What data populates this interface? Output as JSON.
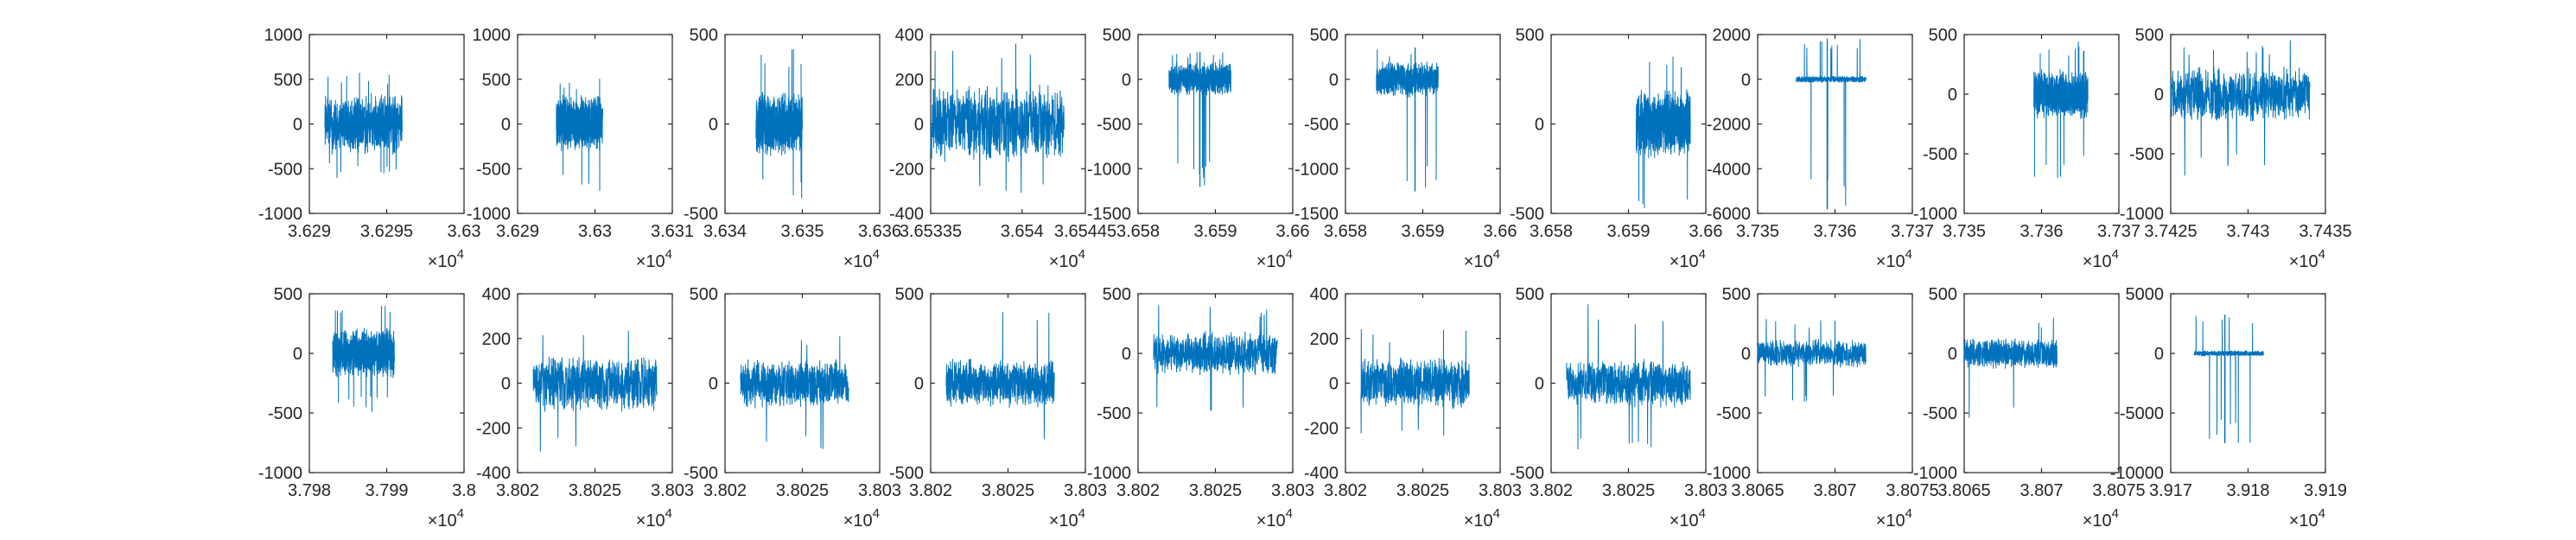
{
  "figure": {
    "line_color": "#0072BD",
    "axis_color": "#262626",
    "background": "#ffffff",
    "grid": false,
    "legend": "none"
  },
  "chart_data": [
    {
      "type": "line",
      "x_multiplier": "×10",
      "x_exponent": "4",
      "xlim": [
        3.629,
        3.63
      ],
      "ylim": [
        -1000,
        1000
      ],
      "x_ticks": [
        "3.629",
        "3.6295",
        "3.63"
      ],
      "y_ticks": [
        "-1000",
        "-500",
        "0",
        "500",
        "1000"
      ],
      "signal": {
        "type": "noise",
        "x_start": 3.6291,
        "x_end": 3.6296,
        "amplitude": 300,
        "peak_max": 600,
        "peak_min": -600,
        "spike_x": null
      }
    },
    {
      "type": "line",
      "x_multiplier": "×10",
      "x_exponent": "4",
      "xlim": [
        3.629,
        3.631
      ],
      "ylim": [
        -1000,
        1000
      ],
      "x_ticks": [
        "3.629",
        "3.63",
        "3.631"
      ],
      "y_ticks": [
        "-1000",
        "-500",
        "0",
        "500",
        "1000"
      ],
      "signal": {
        "type": "noise",
        "x_start": 3.6295,
        "x_end": 3.6301,
        "amplitude": 280,
        "peak_max": 550,
        "peak_min": -800,
        "spike_x": null
      }
    },
    {
      "type": "line",
      "x_multiplier": "×10",
      "x_exponent": "4",
      "xlim": [
        3.634,
        3.636
      ],
      "ylim": [
        -500,
        500
      ],
      "x_ticks": [
        "3.634",
        "3.635",
        "3.636"
      ],
      "y_ticks": [
        "-500",
        "0",
        "500"
      ],
      "signal": {
        "type": "noise",
        "x_start": 3.6344,
        "x_end": 3.635,
        "amplitude": 150,
        "peak_max": 420,
        "peak_min": -420,
        "spike_x": null
      }
    },
    {
      "type": "line",
      "x_multiplier": "×10",
      "x_exponent": "4",
      "xlim": [
        3.65335,
        3.65445
      ],
      "ylim": [
        -400,
        400
      ],
      "x_ticks": [
        "3.65335",
        "3.654",
        "3.65445"
      ],
      "y_ticks": [
        "-400",
        "-200",
        "0",
        "200",
        "400"
      ],
      "signal": {
        "type": "noise",
        "x_start": 3.65335,
        "x_end": 3.6543,
        "amplitude": 150,
        "peak_max": 380,
        "peak_min": -320,
        "spike_x": null
      }
    },
    {
      "type": "line",
      "x_multiplier": "×10",
      "x_exponent": "4",
      "xlim": [
        3.658,
        3.66
      ],
      "ylim": [
        -1500,
        500
      ],
      "x_ticks": [
        "3.658",
        "3.659",
        "3.66"
      ],
      "y_ticks": [
        "-1500",
        "-1000",
        "-500",
        "0",
        "500"
      ],
      "signal": {
        "type": "burst",
        "x_start": 3.6584,
        "x_end": 3.6592,
        "amplitude": 160,
        "peak_max": 300,
        "peak_min": -1200,
        "spike_x": 3.6588
      }
    },
    {
      "type": "line",
      "x_multiplier": "×10",
      "x_exponent": "4",
      "xlim": [
        3.658,
        3.66
      ],
      "ylim": [
        -1500,
        500
      ],
      "x_ticks": [
        "3.658",
        "3.659",
        "3.66"
      ],
      "y_ticks": [
        "-1500",
        "-1000",
        "-500",
        "0",
        "500"
      ],
      "signal": {
        "type": "burst",
        "x_start": 3.6584,
        "x_end": 3.6592,
        "amplitude": 170,
        "peak_max": 350,
        "peak_min": -1250,
        "spike_x": 3.6589
      }
    },
    {
      "type": "line",
      "x_multiplier": "×10",
      "x_exponent": "4",
      "xlim": [
        3.658,
        3.66
      ],
      "ylim": [
        -500,
        500
      ],
      "x_ticks": [
        "3.658",
        "3.659",
        "3.66"
      ],
      "y_ticks": [
        "-500",
        "0",
        "500"
      ],
      "signal": {
        "type": "noise",
        "x_start": 3.6591,
        "x_end": 3.6598,
        "amplitude": 170,
        "peak_max": 450,
        "peak_min": -500,
        "spike_x": null
      }
    },
    {
      "type": "line",
      "x_multiplier": "×10",
      "x_exponent": "4",
      "xlim": [
        3.735,
        3.737
      ],
      "ylim": [
        -6000,
        2000
      ],
      "x_ticks": [
        "3.735",
        "3.736",
        "3.737"
      ],
      "y_ticks": [
        "-6000",
        "-4000",
        "-2000",
        "0",
        "2000"
      ],
      "signal": {
        "type": "spike",
        "x_start": 3.7355,
        "x_end": 3.7364,
        "amplitude": 120,
        "peak_max": 1800,
        "peak_min": -5800,
        "spike_x": 3.7359
      }
    },
    {
      "type": "line",
      "x_multiplier": "×10",
      "x_exponent": "4",
      "xlim": [
        3.735,
        3.737
      ],
      "ylim": [
        -1000,
        500
      ],
      "x_ticks": [
        "3.735",
        "3.736",
        "3.737"
      ],
      "y_ticks": [
        "-1000",
        "-500",
        "0",
        "500"
      ],
      "signal": {
        "type": "noise",
        "x_start": 3.7359,
        "x_end": 3.7366,
        "amplitude": 180,
        "peak_max": 450,
        "peak_min": -700,
        "spike_x": null
      }
    },
    {
      "type": "line",
      "x_multiplier": "×10",
      "x_exponent": "4",
      "xlim": [
        3.7425,
        3.7435
      ],
      "ylim": [
        -1000,
        500
      ],
      "x_ticks": [
        "3.7425",
        "3.743",
        "3.7435"
      ],
      "y_ticks": [
        "-1000",
        "-500",
        "0",
        "500"
      ],
      "signal": {
        "type": "noise",
        "x_start": 3.7425,
        "x_end": 3.7434,
        "amplitude": 200,
        "peak_max": 450,
        "peak_min": -700,
        "spike_x": null
      }
    },
    {
      "type": "line",
      "x_multiplier": "×10",
      "x_exponent": "4",
      "xlim": [
        3.798,
        3.8
      ],
      "ylim": [
        -1000,
        500
      ],
      "x_ticks": [
        "3.798",
        "3.799",
        "3.8"
      ],
      "y_ticks": [
        "-1000",
        "-500",
        "0",
        "500"
      ],
      "signal": {
        "type": "noise",
        "x_start": 3.7983,
        "x_end": 3.7991,
        "amplitude": 180,
        "peak_max": 430,
        "peak_min": -500,
        "spike_x": null
      }
    },
    {
      "type": "line",
      "x_multiplier": "×10",
      "x_exponent": "4",
      "xlim": [
        3.802,
        3.803
      ],
      "ylim": [
        -400,
        400
      ],
      "x_ticks": [
        "3.802",
        "3.8025",
        "3.803"
      ],
      "y_ticks": [
        "-400",
        "-200",
        "0",
        "200",
        "400"
      ],
      "signal": {
        "type": "noise",
        "x_start": 3.8021,
        "x_end": 3.8029,
        "amplitude": 110,
        "peak_max": 280,
        "peak_min": -340,
        "spike_x": null
      }
    },
    {
      "type": "line",
      "x_multiplier": "×10",
      "x_exponent": "4",
      "xlim": [
        3.802,
        3.803
      ],
      "ylim": [
        -500,
        500
      ],
      "x_ticks": [
        "3.802",
        "3.8025",
        "3.803"
      ],
      "y_ticks": [
        "-500",
        "0",
        "500"
      ],
      "signal": {
        "type": "noise",
        "x_start": 3.8021,
        "x_end": 3.8028,
        "amplitude": 120,
        "peak_max": 300,
        "peak_min": -380,
        "spike_x": null
      }
    },
    {
      "type": "line",
      "x_multiplier": "×10",
      "x_exponent": "4",
      "xlim": [
        3.802,
        3.803
      ],
      "ylim": [
        -500,
        500
      ],
      "x_ticks": [
        "3.802",
        "3.8025",
        "3.803"
      ],
      "y_ticks": [
        "-500",
        "0",
        "500"
      ],
      "signal": {
        "type": "noise",
        "x_start": 3.8021,
        "x_end": 3.8028,
        "amplitude": 120,
        "peak_max": 400,
        "peak_min": -430,
        "spike_x": null
      }
    },
    {
      "type": "line",
      "x_multiplier": "×10",
      "x_exponent": "4",
      "xlim": [
        3.802,
        3.803
      ],
      "ylim": [
        -1000,
        500
      ],
      "x_ticks": [
        "3.802",
        "3.8025",
        "3.803"
      ],
      "y_ticks": [
        "-1000",
        "-500",
        "0",
        "500"
      ],
      "signal": {
        "type": "noise",
        "x_start": 3.8021,
        "x_end": 3.8029,
        "amplitude": 160,
        "peak_max": 420,
        "peak_min": -500,
        "spike_x": null
      }
    },
    {
      "type": "line",
      "x_multiplier": "×10",
      "x_exponent": "4",
      "xlim": [
        3.802,
        3.803
      ],
      "ylim": [
        -400,
        400
      ],
      "x_ticks": [
        "3.802",
        "3.8025",
        "3.803"
      ],
      "y_ticks": [
        "-400",
        "-200",
        "0",
        "200",
        "400"
      ],
      "signal": {
        "type": "noise",
        "x_start": 3.8021,
        "x_end": 3.8028,
        "amplitude": 100,
        "peak_max": 260,
        "peak_min": -250,
        "spike_x": null
      }
    },
    {
      "type": "line",
      "x_multiplier": "×10",
      "x_exponent": "4",
      "xlim": [
        3.802,
        3.803
      ],
      "ylim": [
        -500,
        500
      ],
      "x_ticks": [
        "3.802",
        "3.8025",
        "3.803"
      ],
      "y_ticks": [
        "-500",
        "0",
        "500"
      ],
      "signal": {
        "type": "noise",
        "x_start": 3.8021,
        "x_end": 3.8029,
        "amplitude": 120,
        "peak_max": 450,
        "peak_min": -380,
        "spike_x": null
      }
    },
    {
      "type": "line",
      "x_multiplier": "×10",
      "x_exponent": "4",
      "xlim": [
        3.8065,
        3.8075
      ],
      "ylim": [
        -1000,
        500
      ],
      "x_ticks": [
        "3.8065",
        "3.807",
        "3.8075"
      ],
      "y_ticks": [
        "-1000",
        "-500",
        "0",
        "500"
      ],
      "signal": {
        "type": "noise",
        "x_start": 3.8065,
        "x_end": 3.8072,
        "amplitude": 100,
        "peak_max": 300,
        "peak_min": -450,
        "spike_x": null
      }
    },
    {
      "type": "line",
      "x_multiplier": "×10",
      "x_exponent": "4",
      "xlim": [
        3.8065,
        3.8075
      ],
      "ylim": [
        -1000,
        500
      ],
      "x_ticks": [
        "3.8065",
        "3.807",
        "3.8075"
      ],
      "y_ticks": [
        "-1000",
        "-500",
        "0",
        "500"
      ],
      "signal": {
        "type": "noise",
        "x_start": 3.8065,
        "x_end": 3.8071,
        "amplitude": 110,
        "peak_max": 300,
        "peak_min": -550,
        "spike_x": null
      }
    },
    {
      "type": "line",
      "x_multiplier": "×10",
      "x_exponent": "4",
      "xlim": [
        3.917,
        3.919
      ],
      "ylim": [
        -10000,
        5000
      ],
      "x_ticks": [
        "3.917",
        "3.918",
        "3.919"
      ],
      "y_ticks": [
        "-10000",
        "-5000",
        "0",
        "5000"
      ],
      "signal": {
        "type": "spike",
        "x_start": 3.9173,
        "x_end": 3.9182,
        "amplitude": 200,
        "peak_max": 3200,
        "peak_min": -7500,
        "spike_x": 3.9177
      }
    }
  ]
}
